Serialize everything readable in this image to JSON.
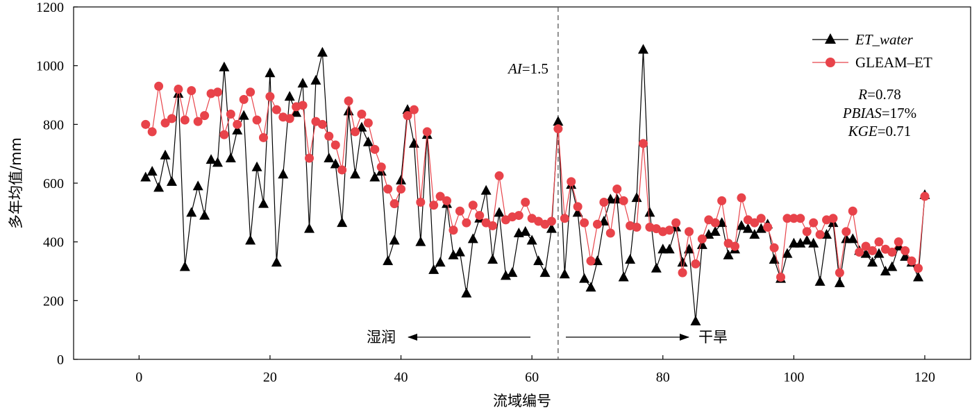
{
  "chart_data": {
    "type": "line",
    "xlabel": "流域编号",
    "ylabel": "多年均值/mm",
    "xlim": [
      -10,
      127
    ],
    "ylim": [
      0,
      1200
    ],
    "xticks": [
      "0",
      "20",
      "40",
      "60",
      "80",
      "100",
      "120"
    ],
    "yticks": [
      "0",
      "200",
      "400",
      "600",
      "800",
      "1000",
      "1200"
    ],
    "grid": false,
    "legend_position": "top-right",
    "series": [
      {
        "name": "ET_water",
        "color": "#000000",
        "marker": "triangle",
        "x": [
          1,
          2,
          3,
          4,
          5,
          6,
          7,
          8,
          9,
          10,
          11,
          12,
          13,
          14,
          15,
          16,
          17,
          18,
          19,
          20,
          21,
          22,
          23,
          24,
          25,
          26,
          27,
          28,
          29,
          30,
          31,
          32,
          33,
          34,
          35,
          36,
          37,
          38,
          39,
          40,
          41,
          42,
          43,
          44,
          45,
          46,
          47,
          48,
          49,
          50,
          51,
          52,
          53,
          54,
          55,
          56,
          57,
          58,
          59,
          60,
          61,
          62,
          63,
          64,
          65,
          66,
          67,
          68,
          69,
          70,
          71,
          72,
          73,
          74,
          75,
          76,
          77,
          78,
          79,
          80,
          81,
          82,
          83,
          84,
          85,
          86,
          87,
          88,
          89,
          90,
          91,
          92,
          93,
          94,
          95,
          96,
          97,
          98,
          99,
          100,
          101,
          102,
          103,
          104,
          105,
          106,
          107,
          108,
          109,
          110,
          111,
          112,
          113,
          114,
          115,
          116,
          117,
          118,
          119,
          120
        ],
        "values": [
          620,
          640,
          585,
          695,
          605,
          905,
          315,
          500,
          590,
          490,
          680,
          670,
          995,
          685,
          780,
          830,
          405,
          655,
          530,
          975,
          330,
          630,
          895,
          840,
          940,
          445,
          950,
          1045,
          685,
          665,
          465,
          845,
          630,
          790,
          740,
          620,
          640,
          335,
          405,
          610,
          850,
          735,
          400,
          765,
          305,
          330,
          530,
          355,
          365,
          225,
          410,
          480,
          575,
          340,
          500,
          285,
          295,
          430,
          435,
          405,
          335,
          295,
          445,
          810,
          290,
          595,
          500,
          275,
          245,
          335,
          470,
          545,
          545,
          280,
          340,
          550,
          1055,
          500,
          310,
          375,
          375,
          450,
          330,
          375,
          130,
          390,
          425,
          435,
          465,
          355,
          375,
          455,
          445,
          425,
          445,
          460,
          340,
          275,
          360,
          395,
          395,
          405,
          395,
          265,
          425,
          465,
          260,
          410,
          410,
          370,
          360,
          330,
          360,
          300,
          315,
          385,
          350,
          330,
          280,
          560
        ]
      },
      {
        "name": "GLEAM–ET",
        "color": "#e8434a",
        "marker": "circle",
        "x": [
          1,
          2,
          3,
          4,
          5,
          6,
          7,
          8,
          9,
          10,
          11,
          12,
          13,
          14,
          15,
          16,
          17,
          18,
          19,
          20,
          21,
          22,
          23,
          24,
          25,
          26,
          27,
          28,
          29,
          30,
          31,
          32,
          33,
          34,
          35,
          36,
          37,
          38,
          39,
          40,
          41,
          42,
          43,
          44,
          45,
          46,
          47,
          48,
          49,
          50,
          51,
          52,
          53,
          54,
          55,
          56,
          57,
          58,
          59,
          60,
          61,
          62,
          63,
          64,
          65,
          66,
          67,
          68,
          69,
          70,
          71,
          72,
          73,
          74,
          75,
          76,
          77,
          78,
          79,
          80,
          81,
          82,
          83,
          84,
          85,
          86,
          87,
          88,
          89,
          90,
          91,
          92,
          93,
          94,
          95,
          96,
          97,
          98,
          99,
          100,
          101,
          102,
          103,
          104,
          105,
          106,
          107,
          108,
          109,
          110,
          111,
          112,
          113,
          114,
          115,
          116,
          117,
          118,
          119,
          120
        ],
        "values": [
          800,
          775,
          930,
          805,
          820,
          920,
          815,
          915,
          810,
          830,
          905,
          910,
          765,
          835,
          800,
          885,
          910,
          815,
          755,
          895,
          850,
          825,
          820,
          860,
          865,
          685,
          810,
          800,
          760,
          730,
          645,
          880,
          775,
          835,
          805,
          715,
          655,
          580,
          530,
          580,
          830,
          850,
          535,
          775,
          525,
          555,
          540,
          440,
          505,
          465,
          525,
          490,
          465,
          455,
          625,
          475,
          485,
          490,
          535,
          480,
          470,
          460,
          470,
          785,
          480,
          605,
          520,
          465,
          335,
          460,
          535,
          430,
          580,
          540,
          455,
          450,
          735,
          450,
          445,
          435,
          440,
          465,
          295,
          435,
          325,
          410,
          475,
          465,
          540,
          395,
          385,
          550,
          475,
          465,
          480,
          450,
          380,
          280,
          480,
          480,
          480,
          435,
          465,
          425,
          475,
          480,
          295,
          435,
          505,
          365,
          385,
          370,
          400,
          375,
          365,
          400,
          370,
          335,
          310,
          555
        ]
      }
    ],
    "annotations": {
      "ai_label_prefix": "AI",
      "ai_label_suffix": "=1.5",
      "ai_x": 64,
      "wet_label": "湿润",
      "dry_label": "干旱"
    },
    "stats": {
      "r_name": "R",
      "r_value": "=0.78",
      "pbias_name": "PBIAS",
      "pbias_value": "=17%",
      "kge_name": "KGE",
      "kge_value": "=0.71"
    }
  }
}
